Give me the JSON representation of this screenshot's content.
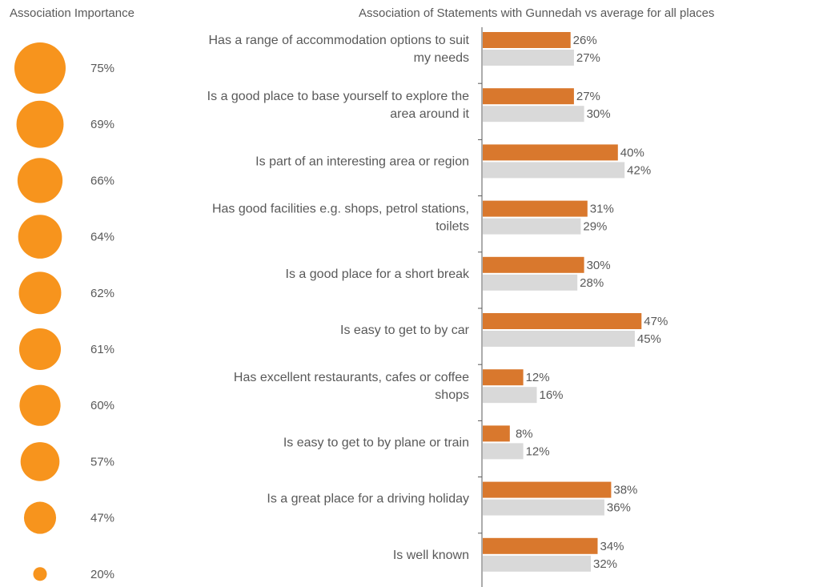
{
  "colors": {
    "importance_bubble": "#F7941D",
    "gunnedah_bar": "#D9782D",
    "average_bar": "#D9D9D9",
    "text": "#595959",
    "axis": "#595959"
  },
  "chart_data": [
    {
      "type": "bubble",
      "title": "Association Importance",
      "values": [
        75,
        69,
        66,
        64,
        62,
        61,
        60,
        57,
        47,
        20
      ],
      "labels": [
        "75%",
        "69%",
        "66%",
        "64%",
        "62%",
        "61%",
        "60%",
        "57%",
        "47%",
        "20%"
      ]
    },
    {
      "type": "bar",
      "orientation": "horizontal",
      "title": "Association of Statements with Gunnedah vs average for all places",
      "categories": [
        [
          "Has a range of accommodation options to suit",
          "my needs"
        ],
        [
          "Is a good place to base yourself to explore the",
          "area around it"
        ],
        [
          "Is part of an interesting area or region"
        ],
        [
          "Has good facilities e.g. shops, petrol stations,",
          "toilets"
        ],
        [
          "Is a good place for a short break"
        ],
        [
          "Is easy to get to by car"
        ],
        [
          "Has excellent restaurants, cafes or coffee",
          "shops"
        ],
        [
          "Is easy to get to by plane or train"
        ],
        [
          "Is a great place for a driving holiday"
        ],
        [
          "Is well known"
        ]
      ],
      "series": [
        {
          "values": [
            26,
            27,
            40,
            31,
            30,
            47,
            12,
            8,
            38,
            34
          ],
          "labels": [
            "26%",
            "27%",
            "40%",
            "31%",
            "30%",
            "47%",
            "12%",
            "8%",
            "38%",
            "34%"
          ]
        },
        {
          "values": [
            27,
            30,
            42,
            29,
            28,
            45,
            16,
            12,
            36,
            32
          ],
          "labels": [
            "27%",
            "30%",
            "42%",
            "29%",
            "28%",
            "45%",
            "16%",
            "12%",
            "36%",
            "32%"
          ]
        }
      ],
      "xlim": [
        0,
        100
      ],
      "grid": false,
      "legend": "none"
    }
  ]
}
